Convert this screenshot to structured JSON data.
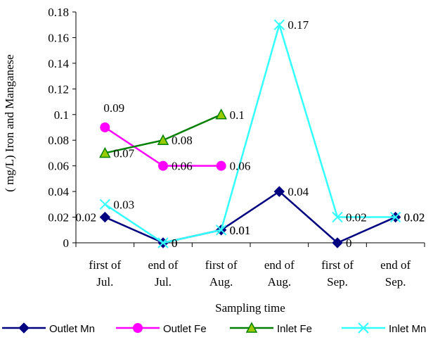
{
  "chart_data": {
    "type": "line",
    "title": "",
    "xlabel": "Sampling time",
    "ylabel": "( mg/L) Iron and Manganese",
    "categories": [
      [
        "first of",
        "Jul."
      ],
      [
        "end of",
        "Jul."
      ],
      [
        "first of",
        "Aug."
      ],
      [
        "end of",
        "Aug."
      ],
      [
        "first of",
        "Sep."
      ],
      [
        "end of",
        "Sep."
      ]
    ],
    "ylim": [
      0,
      0.18
    ],
    "yticks": [
      "0",
      "0.02",
      "0.04",
      "0.06",
      "0.08",
      "0.1",
      "0.12",
      "0.14",
      "0.16",
      "0.18"
    ],
    "grid": false,
    "legend_position": "bottom",
    "series": [
      {
        "name": "Outlet Mn",
        "color": "#000080",
        "marker": "diamond",
        "values": [
          0.02,
          0,
          0.01,
          0.04,
          0,
          0.02
        ],
        "labels": [
          "0.02",
          "0",
          "0.01",
          "0.04",
          "0",
          "0.02"
        ]
      },
      {
        "name": "Outlet Fe",
        "color": "#ff00ff",
        "marker": "circle",
        "values": [
          0.09,
          0.06,
          0.06,
          null,
          null,
          null
        ],
        "labels": [
          "0.09",
          "0.06",
          "0.06",
          null,
          null,
          null
        ]
      },
      {
        "name": "Inlet Fe",
        "color": "#008000",
        "marker": "triangle",
        "values": [
          0.07,
          0.08,
          0.1,
          null,
          null,
          null
        ],
        "labels": [
          "0.07",
          "0.08",
          "0.1",
          null,
          null,
          null
        ]
      },
      {
        "name": "Inlet Mn",
        "color": "#33ffff",
        "marker": "x",
        "values": [
          0.03,
          0,
          0.01,
          0.17,
          0.02,
          0.02
        ],
        "labels": [
          "0.03",
          "0",
          "0.01",
          "0.17",
          "0.02",
          "0.02"
        ]
      }
    ]
  }
}
